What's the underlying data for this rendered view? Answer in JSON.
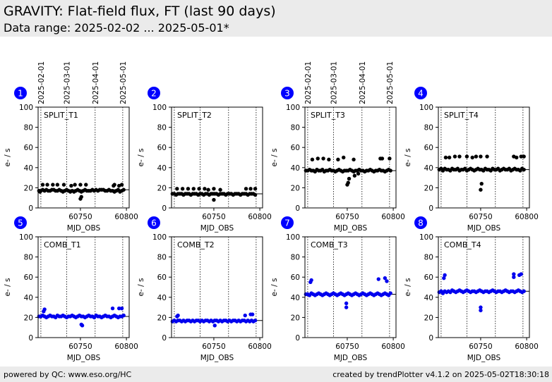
{
  "header": {
    "title": "GRAVITY: Flat-field flux, FT (last 90 days)",
    "subtitle": "Data range: 2025-02-02 ... 2025-05-01*"
  },
  "footer": {
    "left": "powered by QC: www.eso.org/HC",
    "right": "created by trendPlotter v4.1.2 on 2025-05-02T18:30:18"
  },
  "date_ticks": [
    {
      "label": "2025-02-01",
      "mjd": 60707
    },
    {
      "label": "2025-03-01",
      "mjd": 60735
    },
    {
      "label": "2025-04-01",
      "mjd": 60766
    },
    {
      "label": "2025-05-01",
      "mjd": 60796
    }
  ],
  "colors": {
    "row1_points": "#000000",
    "row2_points": "#0000ee",
    "badge": "#0000ff"
  },
  "chart_data": [
    {
      "type": "scatter",
      "badge": "1",
      "label": "SPLIT_T1",
      "xlabel": "MJD_OBS",
      "ylabel": "e- / s",
      "xlim": [
        60704,
        60803
      ],
      "ylim": [
        0,
        100
      ],
      "xticks": [
        60750,
        60800
      ],
      "yticks": [
        0,
        20,
        40,
        60,
        80,
        100
      ],
      "ref_line": 18,
      "x": [
        60705,
        60706,
        60707,
        60709,
        60711,
        60713,
        60715,
        60717,
        60719,
        60721,
        60723,
        60725,
        60727,
        60729,
        60731,
        60733,
        60735,
        60737,
        60739,
        60741,
        60743,
        60745,
        60747,
        60749,
        60751,
        60753,
        60755,
        60757,
        60759,
        60761,
        60763,
        60765,
        60767,
        60769,
        60771,
        60773,
        60775,
        60777,
        60779,
        60781,
        60783,
        60785,
        60787,
        60789,
        60791,
        60793,
        60795,
        60797,
        60709,
        60714,
        60720,
        60725,
        60732,
        60740,
        60744,
        60750,
        60756,
        60786,
        60787,
        60792,
        60795,
        60750,
        60751
      ],
      "y": [
        17,
        16,
        17,
        18,
        17,
        18,
        17,
        17,
        18,
        18,
        17,
        17,
        18,
        17,
        16,
        17,
        18,
        17,
        16,
        17,
        16,
        17,
        18,
        17,
        16,
        17,
        18,
        17,
        17,
        17,
        18,
        17,
        18,
        17,
        18,
        18,
        18,
        17,
        17,
        18,
        17,
        17,
        16,
        17,
        18,
        16,
        17,
        18,
        23,
        23,
        23,
        23,
        23,
        22,
        23,
        23,
        23,
        22,
        23,
        22,
        23,
        9,
        11
      ]
    },
    {
      "type": "scatter",
      "badge": "2",
      "label": "SPLIT_T2",
      "xlabel": "MJD_OBS",
      "ylabel": "e- / s",
      "xlim": [
        60704,
        60803
      ],
      "ylim": [
        0,
        100
      ],
      "xticks": [
        60750,
        60800
      ],
      "yticks": [
        0,
        20,
        40,
        60,
        80,
        100
      ],
      "ref_line": 14,
      "x": [
        60705,
        60707,
        60709,
        60711,
        60713,
        60715,
        60717,
        60719,
        60721,
        60723,
        60725,
        60727,
        60729,
        60731,
        60733,
        60735,
        60737,
        60739,
        60741,
        60743,
        60745,
        60747,
        60749,
        60751,
        60753,
        60755,
        60757,
        60759,
        60761,
        60763,
        60765,
        60767,
        60769,
        60771,
        60773,
        60775,
        60777,
        60779,
        60781,
        60783,
        60785,
        60787,
        60789,
        60791,
        60793,
        60795,
        60710,
        60716,
        60722,
        60728,
        60734,
        60740,
        60744,
        60750,
        60757,
        60785,
        60790,
        60795,
        60750
      ],
      "y": [
        14,
        14,
        13,
        14,
        14,
        14,
        13,
        14,
        14,
        14,
        13,
        14,
        14,
        14,
        13,
        14,
        14,
        13,
        14,
        14,
        13,
        14,
        14,
        14,
        14,
        13,
        14,
        14,
        14,
        13,
        14,
        14,
        14,
        13,
        14,
        14,
        14,
        13,
        14,
        14,
        14,
        13,
        14,
        14,
        14,
        13,
        19,
        19,
        19,
        19,
        19,
        19,
        18,
        19,
        18,
        19,
        19,
        19,
        8
      ]
    },
    {
      "type": "scatter",
      "badge": "3",
      "label": "SPLIT_T3",
      "xlabel": "MJD_OBS",
      "ylabel": "e- / s",
      "xlim": [
        60704,
        60803
      ],
      "ylim": [
        0,
        100
      ],
      "xticks": [
        60750,
        60800
      ],
      "yticks": [
        0,
        20,
        40,
        60,
        80,
        100
      ],
      "ref_line": 37,
      "x": [
        60705,
        60707,
        60709,
        60711,
        60713,
        60715,
        60717,
        60719,
        60721,
        60723,
        60725,
        60727,
        60729,
        60731,
        60733,
        60735,
        60737,
        60739,
        60741,
        60743,
        60745,
        60747,
        60749,
        60751,
        60753,
        60755,
        60757,
        60759,
        60761,
        60763,
        60765,
        60767,
        60769,
        60771,
        60773,
        60775,
        60777,
        60779,
        60781,
        60783,
        60785,
        60787,
        60789,
        60791,
        60793,
        60795,
        60797,
        60712,
        60718,
        60724,
        60730,
        60740,
        60746,
        60757,
        60786,
        60788,
        60796,
        60750,
        60751,
        60752,
        60758,
        60762
      ],
      "y": [
        37,
        37,
        38,
        37,
        37,
        36,
        38,
        37,
        37,
        38,
        36,
        37,
        37,
        38,
        37,
        37,
        36,
        37,
        38,
        37,
        36,
        37,
        37,
        37,
        38,
        37,
        36,
        37,
        37,
        38,
        37,
        37,
        36,
        37,
        37,
        38,
        37,
        36,
        37,
        37,
        38,
        37,
        37,
        36,
        37,
        38,
        37,
        48,
        49,
        49,
        48,
        48,
        50,
        48,
        49,
        49,
        49,
        23,
        25,
        29,
        32,
        34
      ]
    },
    {
      "type": "scatter",
      "badge": "4",
      "label": "SPLIT_T4",
      "xlabel": "MJD_OBS",
      "ylabel": "e- / s",
      "xlim": [
        60704,
        60803
      ],
      "ylim": [
        0,
        100
      ],
      "xticks": [
        60750,
        60800
      ],
      "yticks": [
        0,
        20,
        40,
        60,
        80,
        100
      ],
      "ref_line": 38,
      "x": [
        60705,
        60707,
        60709,
        60711,
        60713,
        60715,
        60717,
        60719,
        60721,
        60723,
        60725,
        60727,
        60729,
        60731,
        60733,
        60735,
        60737,
        60739,
        60741,
        60743,
        60745,
        60747,
        60749,
        60751,
        60753,
        60755,
        60757,
        60759,
        60761,
        60763,
        60765,
        60767,
        60769,
        60771,
        60773,
        60775,
        60777,
        60779,
        60781,
        60783,
        60785,
        60787,
        60789,
        60791,
        60793,
        60795,
        60797,
        60712,
        60716,
        60722,
        60727,
        60735,
        60741,
        60745,
        60750,
        60757,
        60786,
        60789,
        60794,
        60797,
        60750,
        60751
      ],
      "y": [
        38,
        39,
        37,
        39,
        38,
        38,
        37,
        39,
        38,
        38,
        39,
        37,
        38,
        38,
        39,
        37,
        38,
        39,
        38,
        37,
        38,
        39,
        38,
        38,
        37,
        39,
        38,
        38,
        37,
        39,
        38,
        38,
        39,
        37,
        38,
        39,
        38,
        38,
        39,
        37,
        38,
        39,
        38,
        38,
        37,
        39,
        38,
        50,
        50,
        51,
        51,
        51,
        50,
        51,
        51,
        51,
        51,
        50,
        51,
        51,
        18,
        24
      ]
    },
    {
      "type": "scatter",
      "badge": "5",
      "label": "COMB_T1",
      "xlabel": "MJD_OBS",
      "ylabel": "e- / s",
      "xlim": [
        60704,
        60803
      ],
      "ylim": [
        0,
        100
      ],
      "xticks": [
        60750,
        60800
      ],
      "yticks": [
        0,
        20,
        40,
        60,
        80,
        100
      ],
      "ref_line": 21,
      "x": [
        60705,
        60707,
        60709,
        60711,
        60713,
        60715,
        60717,
        60719,
        60721,
        60723,
        60725,
        60727,
        60729,
        60731,
        60733,
        60735,
        60737,
        60739,
        60741,
        60743,
        60745,
        60747,
        60749,
        60751,
        60753,
        60755,
        60757,
        60759,
        60761,
        60763,
        60765,
        60767,
        60769,
        60771,
        60773,
        60775,
        60777,
        60779,
        60781,
        60783,
        60785,
        60787,
        60789,
        60791,
        60793,
        60795,
        60797,
        60710,
        60711,
        60785,
        60792,
        60795,
        60751,
        60752
      ],
      "y": [
        21,
        21,
        22,
        21,
        20,
        21,
        22,
        21,
        21,
        20,
        22,
        21,
        21,
        22,
        21,
        20,
        21,
        21,
        22,
        21,
        20,
        21,
        22,
        21,
        21,
        20,
        21,
        22,
        21,
        21,
        20,
        22,
        21,
        21,
        20,
        21,
        22,
        21,
        21,
        20,
        21,
        22,
        21,
        20,
        21,
        21,
        22,
        26,
        28,
        29,
        29,
        29,
        13,
        12
      ]
    },
    {
      "type": "scatter",
      "badge": "6",
      "label": "COMB_T2",
      "xlabel": "MJD_OBS",
      "ylabel": "e- / s",
      "xlim": [
        60704,
        60803
      ],
      "ylim": [
        0,
        100
      ],
      "xticks": [
        60750,
        60800
      ],
      "yticks": [
        0,
        20,
        40,
        60,
        80,
        100
      ],
      "ref_line": 17,
      "x": [
        60705,
        60707,
        60709,
        60711,
        60713,
        60715,
        60717,
        60719,
        60721,
        60723,
        60725,
        60727,
        60729,
        60731,
        60733,
        60735,
        60737,
        60739,
        60741,
        60743,
        60745,
        60747,
        60749,
        60751,
        60753,
        60755,
        60757,
        60759,
        60761,
        60763,
        60765,
        60767,
        60769,
        60771,
        60773,
        60775,
        60777,
        60779,
        60781,
        60783,
        60785,
        60787,
        60789,
        60791,
        60793,
        60795,
        60710,
        60711,
        60784,
        60790,
        60792,
        60751
      ],
      "y": [
        16,
        17,
        16,
        17,
        17,
        16,
        17,
        16,
        17,
        17,
        16,
        17,
        16,
        17,
        17,
        16,
        17,
        16,
        17,
        17,
        16,
        17,
        16,
        17,
        17,
        16,
        17,
        16,
        17,
        17,
        16,
        17,
        16,
        17,
        17,
        16,
        17,
        16,
        17,
        17,
        16,
        17,
        16,
        17,
        16,
        17,
        21,
        22,
        22,
        23,
        23,
        12
      ]
    },
    {
      "type": "scatter",
      "badge": "7",
      "label": "COMB_T3",
      "xlabel": "MJD_OBS",
      "ylabel": "e- / s",
      "xlim": [
        60704,
        60803
      ],
      "ylim": [
        0,
        100
      ],
      "xticks": [
        60750,
        60800
      ],
      "yticks": [
        0,
        20,
        40,
        60,
        80,
        100
      ],
      "ref_line": 43,
      "x": [
        60705,
        60707,
        60709,
        60711,
        60713,
        60715,
        60717,
        60719,
        60721,
        60723,
        60725,
        60727,
        60729,
        60731,
        60733,
        60735,
        60737,
        60739,
        60741,
        60743,
        60745,
        60747,
        60749,
        60751,
        60753,
        60755,
        60757,
        60759,
        60761,
        60763,
        60765,
        60767,
        60769,
        60771,
        60773,
        60775,
        60777,
        60779,
        60781,
        60783,
        60785,
        60787,
        60789,
        60791,
        60793,
        60795,
        60797,
        60710,
        60711,
        60784,
        60791,
        60793,
        60749,
        60749
      ],
      "y": [
        43,
        43,
        42,
        44,
        43,
        42,
        43,
        44,
        43,
        42,
        43,
        44,
        43,
        42,
        43,
        44,
        43,
        42,
        43,
        44,
        43,
        42,
        43,
        44,
        43,
        42,
        43,
        44,
        43,
        42,
        43,
        44,
        43,
        42,
        43,
        44,
        43,
        42,
        43,
        44,
        43,
        42,
        43,
        44,
        43,
        42,
        44,
        55,
        57,
        58,
        59,
        56,
        34,
        30
      ]
    },
    {
      "type": "scatter",
      "badge": "8",
      "label": "COMB_T4",
      "xlabel": "MJD_OBS",
      "ylabel": "e- / s",
      "xlim": [
        60704,
        60803
      ],
      "ylim": [
        0,
        100
      ],
      "xticks": [
        60750,
        60800
      ],
      "yticks": [
        0,
        20,
        40,
        60,
        80,
        100
      ],
      "ref_line": 46,
      "x": [
        60705,
        60707,
        60709,
        60711,
        60713,
        60715,
        60717,
        60719,
        60721,
        60723,
        60725,
        60727,
        60729,
        60731,
        60733,
        60735,
        60737,
        60739,
        60741,
        60743,
        60745,
        60747,
        60749,
        60751,
        60753,
        60755,
        60757,
        60759,
        60761,
        60763,
        60765,
        60767,
        60769,
        60771,
        60773,
        60775,
        60777,
        60779,
        60781,
        60783,
        60785,
        60787,
        60789,
        60791,
        60793,
        60795,
        60797,
        60710,
        60711,
        60786,
        60786,
        60792,
        60794,
        60750,
        60750
      ],
      "y": [
        45,
        46,
        44,
        46,
        45,
        46,
        45,
        47,
        46,
        45,
        46,
        47,
        46,
        45,
        46,
        47,
        46,
        45,
        46,
        46,
        45,
        46,
        47,
        46,
        45,
        46,
        46,
        45,
        46,
        47,
        46,
        45,
        46,
        46,
        45,
        46,
        47,
        46,
        45,
        46,
        46,
        45,
        46,
        47,
        46,
        45,
        46,
        59,
        62,
        60,
        63,
        62,
        63,
        27,
        30
      ]
    }
  ]
}
